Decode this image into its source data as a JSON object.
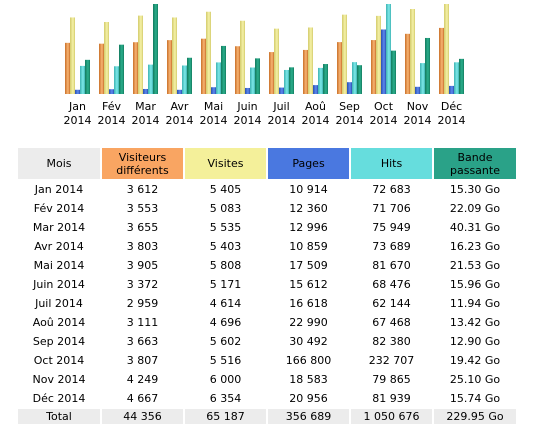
{
  "colors": {
    "visiteurs": "#f9a562",
    "visites": "#f4f09a",
    "pages": "#4477dd",
    "hits": "#66dddd",
    "bande": "#2aa288",
    "header_gray": "#ececec"
  },
  "table": {
    "headers": {
      "mois": "Mois",
      "visiteurs": "Visiteurs différents",
      "visites": "Visites",
      "pages": "Pages",
      "hits": "Hits",
      "bande": "Bande passante"
    },
    "rows": [
      {
        "mois": "Jan 2014",
        "visiteurs": "3 612",
        "visites": "5 405",
        "pages": "10 914",
        "hits": "72 683",
        "bande": "15.30 Go"
      },
      {
        "mois": "Fév 2014",
        "visiteurs": "3 553",
        "visites": "5 083",
        "pages": "12 360",
        "hits": "71 706",
        "bande": "22.09 Go"
      },
      {
        "mois": "Mar 2014",
        "visiteurs": "3 655",
        "visites": "5 535",
        "pages": "12 996",
        "hits": "75 949",
        "bande": "40.31 Go"
      },
      {
        "mois": "Avr 2014",
        "visiteurs": "3 803",
        "visites": "5 403",
        "pages": "10 859",
        "hits": "73 689",
        "bande": "16.23 Go"
      },
      {
        "mois": "Mai 2014",
        "visiteurs": "3 905",
        "visites": "5 808",
        "pages": "17 509",
        "hits": "81 670",
        "bande": "21.53 Go"
      },
      {
        "mois": "Juin 2014",
        "visiteurs": "3 372",
        "visites": "5 171",
        "pages": "15 612",
        "hits": "68 476",
        "bande": "15.96 Go"
      },
      {
        "mois": "Juil 2014",
        "visiteurs": "2 959",
        "visites": "4 614",
        "pages": "16 618",
        "hits": "62 144",
        "bande": "11.94 Go"
      },
      {
        "mois": "Aoû 2014",
        "visiteurs": "3 111",
        "visites": "4 696",
        "pages": "22 990",
        "hits": "67 468",
        "bande": "13.42 Go"
      },
      {
        "mois": "Sep 2014",
        "visiteurs": "3 663",
        "visites": "5 602",
        "pages": "30 492",
        "hits": "82 380",
        "bande": "12.90 Go"
      },
      {
        "mois": "Oct 2014",
        "visiteurs": "3 807",
        "visites": "5 516",
        "pages": "166 800",
        "hits": "232 707",
        "bande": "19.42 Go"
      },
      {
        "mois": "Nov 2014",
        "visiteurs": "4 249",
        "visites": "6 000",
        "pages": "18 583",
        "hits": "79 865",
        "bande": "25.10 Go"
      },
      {
        "mois": "Déc 2014",
        "visiteurs": "4 667",
        "visites": "6 354",
        "pages": "20 956",
        "hits": "81 939",
        "bande": "15.74 Go"
      }
    ],
    "total": {
      "mois": "Total",
      "visiteurs": "44 356",
      "visites": "65 187",
      "pages": "356 689",
      "hits": "1 050 676",
      "bande": "229.95 Go"
    }
  },
  "chart_data": {
    "type": "bar",
    "categories": [
      [
        "Jan",
        "2014"
      ],
      [
        "Fév",
        "2014"
      ],
      [
        "Mar",
        "2014"
      ],
      [
        "Avr",
        "2014"
      ],
      [
        "Mai",
        "2014"
      ],
      [
        "Juin",
        "2014"
      ],
      [
        "Juil",
        "2014"
      ],
      [
        "Aoû",
        "2014"
      ],
      [
        "Sep",
        "2014"
      ],
      [
        "Oct",
        "2014"
      ],
      [
        "Nov",
        "2014"
      ],
      [
        "Déc",
        "2014"
      ]
    ],
    "series": [
      {
        "key": "visiteurs",
        "values": [
          3612,
          3553,
          3655,
          3803,
          3905,
          3372,
          2959,
          3111,
          3663,
          3807,
          4249,
          4667
        ]
      },
      {
        "key": "visites",
        "values": [
          5405,
          5083,
          5535,
          5403,
          5808,
          5171,
          4614,
          4696,
          5602,
          5516,
          6000,
          6354
        ]
      },
      {
        "key": "pages",
        "values": [
          10914,
          12360,
          12996,
          10859,
          17509,
          15612,
          16618,
          22990,
          30492,
          166800,
          18583,
          20956
        ]
      },
      {
        "key": "hits",
        "values": [
          72683,
          71706,
          75949,
          73689,
          81670,
          68476,
          62144,
          67468,
          82380,
          232707,
          79865,
          81939
        ]
      },
      {
        "key": "bande",
        "values": [
          15.3,
          22.09,
          40.31,
          16.23,
          21.53,
          15.96,
          11.94,
          13.42,
          12.9,
          19.42,
          25.1,
          15.74
        ]
      }
    ],
    "scale_groups": [
      [
        "visiteurs",
        "visites"
      ],
      [
        "pages",
        "hits"
      ],
      [
        "bande"
      ]
    ]
  }
}
